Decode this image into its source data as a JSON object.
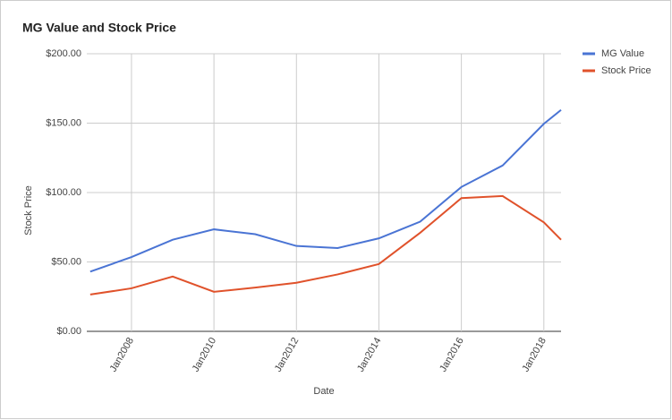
{
  "chart_data": {
    "type": "line",
    "title": "MG Value and Stock Price",
    "x_label": "Date",
    "y_label": "Stock Price",
    "x": [
      "2007-01",
      "2008-01",
      "2009-01",
      "2010-01",
      "2011-01",
      "2012-01",
      "2013-01",
      "2014-01",
      "2015-01",
      "2016-01",
      "2017-01",
      "2018-01",
      "2018-06"
    ],
    "series": [
      {
        "name": "MG Value",
        "color": "#4a74d4",
        "values": [
          43,
          53.5,
          66,
          73.5,
          70,
          61.5,
          60,
          67,
          79,
          104,
          119.5,
          149.5,
          159.5
        ]
      },
      {
        "name": "Stock Price",
        "color": "#e0522b",
        "values": [
          26.5,
          31,
          39.5,
          28.5,
          31.5,
          35,
          41,
          48.5,
          71,
          96,
          97.5,
          78.5,
          66
        ]
      }
    ],
    "xlim": [
      "2006-12",
      "2018-06"
    ],
    "xticks": [
      {
        "value": "2008-01",
        "label": "Jan2008"
      },
      {
        "value": "2010-01",
        "label": "Jan2010"
      },
      {
        "value": "2012-01",
        "label": "Jan2012"
      },
      {
        "value": "2014-01",
        "label": "Jan2014"
      },
      {
        "value": "2016-01",
        "label": "Jan2016"
      },
      {
        "value": "2018-01",
        "label": "Jan2018"
      }
    ],
    "ylim": [
      0,
      200
    ],
    "yticks": [
      {
        "value": 0,
        "label": "$0.00"
      },
      {
        "value": 50,
        "label": "$50.00"
      },
      {
        "value": 100,
        "label": "$100.00"
      },
      {
        "value": 150,
        "label": "$150.00"
      },
      {
        "value": 200,
        "label": "$200.00"
      }
    ],
    "grid": true,
    "legend": "right"
  }
}
